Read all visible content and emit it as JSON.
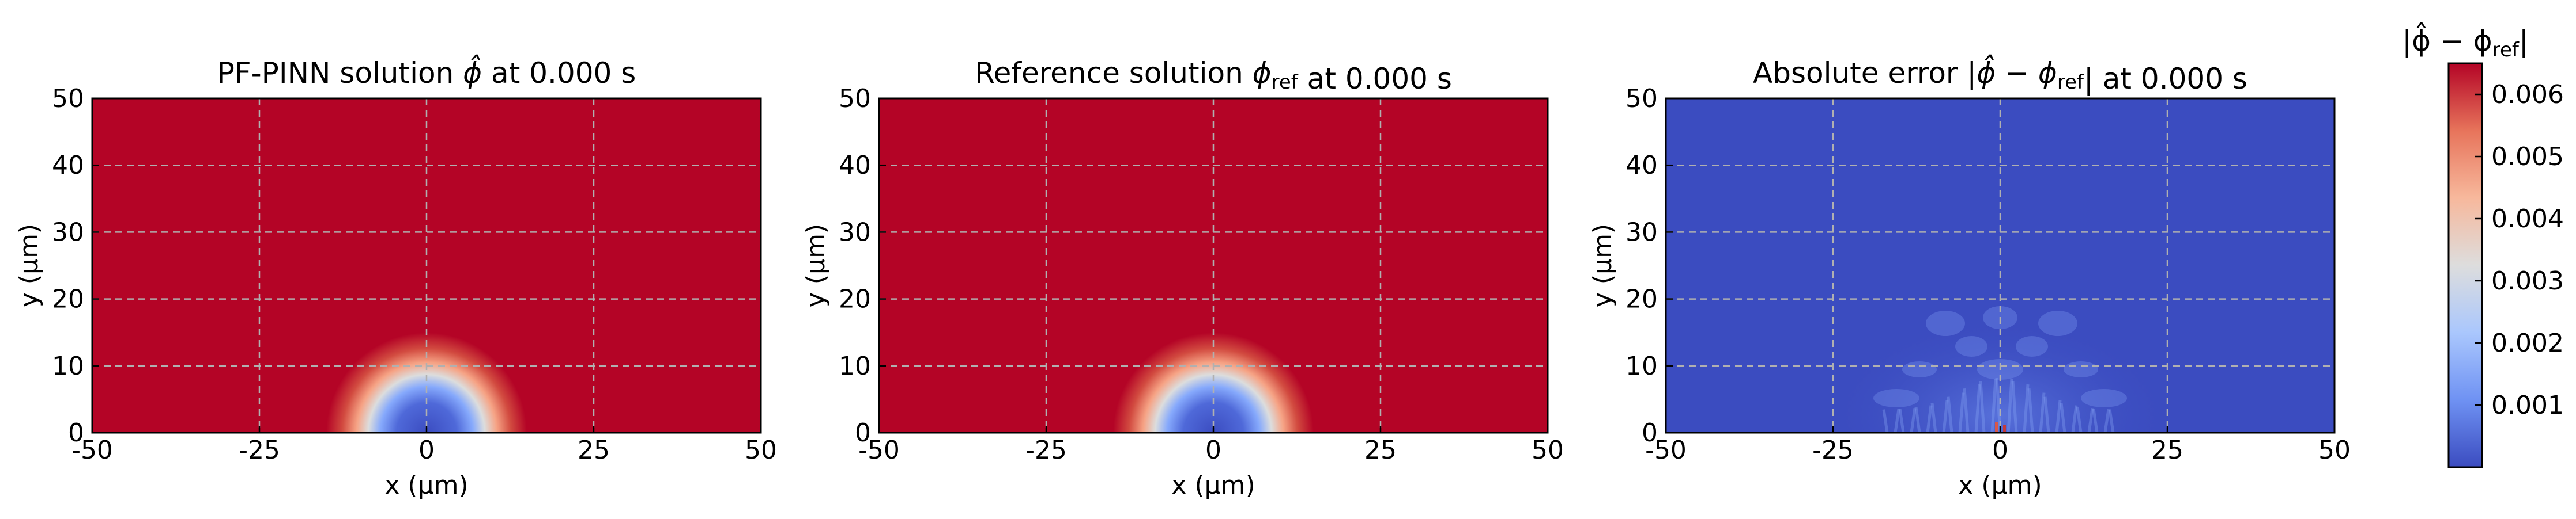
{
  "figure": {
    "colorbar": {
      "label": "|ϕ̂ − ϕ_ref|",
      "ticks": [
        0.001,
        0.002,
        0.003,
        0.004,
        0.005,
        0.006
      ],
      "tick_labels": [
        "0.001",
        "0.002",
        "0.003",
        "0.004",
        "0.005",
        "0.006"
      ],
      "range": [
        0.0,
        0.0065
      ],
      "colormap": "coolwarm"
    },
    "colormap_stops": [
      "#3b4cc0",
      "#6f92f3",
      "#aac7fd",
      "#dddddd",
      "#f7b89c",
      "#e7745b",
      "#b40426"
    ]
  },
  "chart_data": [
    {
      "type": "heatmap",
      "title": "PF-PINN solution ϕ̂ at 0.000 s",
      "xlabel": "x (µm)",
      "ylabel": "y (µm)",
      "xlim": [
        -50,
        50
      ],
      "ylim": [
        0,
        50
      ],
      "xticks": [
        -50,
        -25,
        0,
        25,
        50
      ],
      "xtick_labels": [
        "-50",
        "-25",
        "0",
        "25",
        "50"
      ],
      "yticks": [
        0,
        10,
        20,
        30,
        40,
        50
      ],
      "ytick_labels": [
        "0",
        "10",
        "20",
        "30",
        "40",
        "50"
      ],
      "grid": true,
      "field": {
        "background_value": 1.0,
        "feature": "semicircular low-value region centered at x=0, y=0",
        "center": [
          0,
          0
        ],
        "inner_radius": 5,
        "outer_radius": 12,
        "min_value": 0.0
      }
    },
    {
      "type": "heatmap",
      "title": "Reference solution ϕ_ref at 0.000 s",
      "xlabel": "x (µm)",
      "ylabel": "y (µm)",
      "xlim": [
        -50,
        50
      ],
      "ylim": [
        0,
        50
      ],
      "xticks": [
        -50,
        -25,
        0,
        25,
        50
      ],
      "xtick_labels": [
        "-50",
        "-25",
        "0",
        "25",
        "50"
      ],
      "yticks": [
        0,
        10,
        20,
        30,
        40,
        50
      ],
      "ytick_labels": [
        "0",
        "10",
        "20",
        "30",
        "40",
        "50"
      ],
      "grid": true,
      "field": {
        "background_value": 1.0,
        "feature": "semicircular low-value region centered at x=0, y=0",
        "center": [
          0,
          0
        ],
        "inner_radius": 5,
        "outer_radius": 12,
        "min_value": 0.0
      }
    },
    {
      "type": "heatmap",
      "title": "Absolute error |ϕ̂ − ϕ_ref| at 0.000 s",
      "xlabel": "x (µm)",
      "ylabel": "y (µm)",
      "xlim": [
        -50,
        50
      ],
      "ylim": [
        0,
        50
      ],
      "xticks": [
        -50,
        -25,
        0,
        25,
        50
      ],
      "xtick_labels": [
        "-50",
        "-25",
        "0",
        "25",
        "50"
      ],
      "yticks": [
        0,
        10,
        20,
        30,
        40,
        50
      ],
      "ytick_labels": [
        "0",
        "10",
        "20",
        "30",
        "40",
        "50"
      ],
      "grid": true,
      "field": {
        "background_value": 0.0,
        "feature": "small error ripples near the interface, max near x=0, y=0",
        "max_value": 0.0065
      }
    }
  ]
}
